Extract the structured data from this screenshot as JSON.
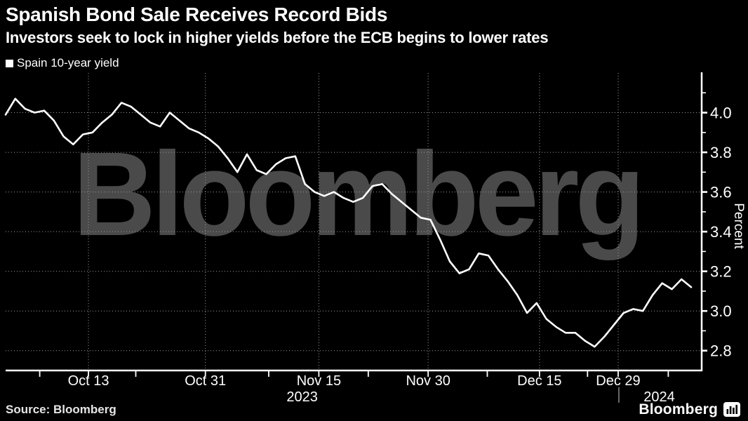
{
  "header": {
    "title": "Spanish Bond Sale Receives Record Bids",
    "subtitle": "Investors seek to lock in higher yields before the ECB begins to lower rates"
  },
  "legend": {
    "label": "Spain 10-year yield",
    "swatch_color": "#ffffff"
  },
  "chart_data": {
    "type": "line",
    "title": "Spanish Bond Sale Receives Record Bids",
    "watermark": "Bloomberg",
    "grid": "dotted, both axes, drawn over watermark",
    "legend_position": "top-left",
    "series": [
      {
        "name": "Spain 10-year yield",
        "color": "#ffffff",
        "values": [
          3.99,
          4.07,
          4.02,
          4.0,
          4.01,
          3.96,
          3.88,
          3.84,
          3.89,
          3.9,
          3.95,
          3.99,
          4.05,
          4.03,
          3.99,
          3.95,
          3.93,
          4.0,
          3.96,
          3.92,
          3.9,
          3.87,
          3.83,
          3.77,
          3.7,
          3.79,
          3.71,
          3.69,
          3.74,
          3.77,
          3.78,
          3.64,
          3.6,
          3.58,
          3.6,
          3.57,
          3.55,
          3.57,
          3.63,
          3.64,
          3.59,
          3.55,
          3.51,
          3.47,
          3.46,
          3.36,
          3.25,
          3.19,
          3.21,
          3.29,
          3.28,
          3.21,
          3.15,
          3.08,
          2.99,
          3.04,
          2.96,
          2.92,
          2.89,
          2.89,
          2.85,
          2.82,
          2.87,
          2.93,
          2.99,
          3.01,
          3.0,
          3.08,
          3.14,
          3.11,
          3.16,
          3.12
        ]
      }
    ],
    "y_axis": {
      "label": "Percent",
      "side": "right",
      "range": [
        2.7,
        4.2
      ],
      "major_ticks": [
        {
          "label": "4.0",
          "value": 4.0
        },
        {
          "label": "3.8",
          "value": 3.8
        },
        {
          "label": "3.6",
          "value": 3.6
        },
        {
          "label": "3.4",
          "value": 3.4
        },
        {
          "label": "3.2",
          "value": 3.2
        },
        {
          "label": "3.0",
          "value": 3.0
        },
        {
          "label": "2.8",
          "value": 2.8
        }
      ],
      "minor_tick_values": [
        4.1,
        3.9,
        3.7,
        3.5,
        3.3,
        3.1,
        2.9
      ]
    },
    "x_axis": {
      "labels": [
        {
          "label": "Oct 13",
          "pos": 0.119
        },
        {
          "label": "Oct 31",
          "pos": 0.287
        },
        {
          "label": "Nov 15",
          "pos": 0.45
        },
        {
          "label": "Nov 30",
          "pos": 0.607
        },
        {
          "label": "Dec 15",
          "pos": 0.767
        },
        {
          "label": "Dec 29",
          "pos": 0.88
        }
      ],
      "minor_tick_pos": [
        0.049,
        0.187,
        0.378,
        0.521,
        0.692,
        0.836,
        0.952
      ],
      "year_markers": [
        {
          "label": "2023",
          "pos": 0.426
        },
        {
          "label": "2024",
          "pos": 0.939
        }
      ],
      "year_divider_pos": 0.881
    }
  },
  "footer": {
    "source": "Source: Bloomberg",
    "brand": "Bloomberg",
    "brand_icon": "bar-chart-bubble-icon"
  },
  "colors": {
    "background": "#000000",
    "text": "#ffffff",
    "line": "#ffffff",
    "grid": "#9b9b9b",
    "watermark": "#4a4a4a",
    "year_divider": "#888888"
  }
}
